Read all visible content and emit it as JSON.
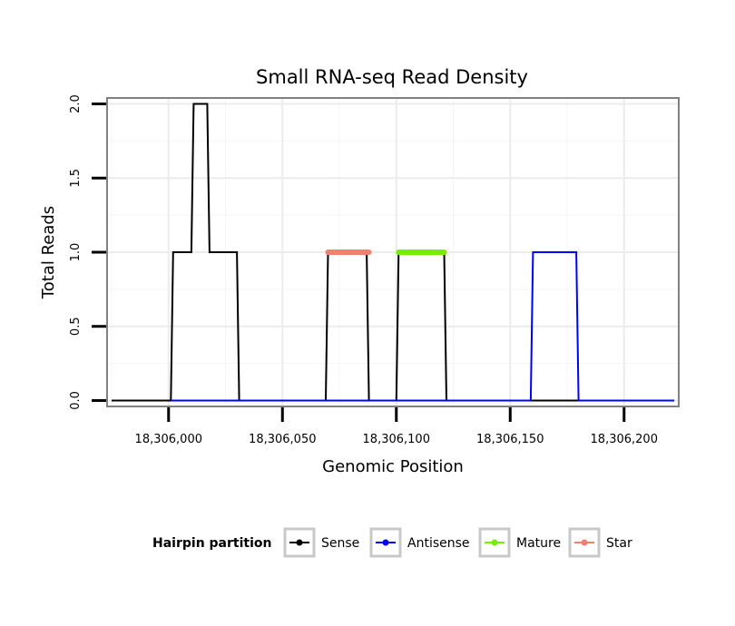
{
  "chart_data": {
    "type": "line",
    "title": "Small RNA-seq Read Density",
    "xlabel": "Genomic Position",
    "ylabel": "Total Reads",
    "xlim": [
      18305973,
      18306224
    ],
    "ylim": [
      -0.04,
      2.04
    ],
    "x_ticks": [
      18306000,
      18306050,
      18306100,
      18306150,
      18306200
    ],
    "x_tick_labels": [
      "18,306,000",
      "18,306,050",
      "18,306,100",
      "18,306,150",
      "18,306,200"
    ],
    "y_ticks": [
      0,
      0.5,
      1,
      1.5,
      2
    ],
    "y_tick_labels": [
      "0.0",
      "0.5",
      "1.0",
      "1.5",
      "2.0"
    ],
    "grid": true,
    "legend_title": "Hairpin partition",
    "legend_position": "bottom",
    "series": [
      {
        "name": "Sense",
        "color": "#000000",
        "width": "thin",
        "points": [
          [
            18305975,
            0
          ],
          [
            18306001,
            0
          ],
          [
            18306002,
            1
          ],
          [
            18306010,
            1
          ],
          [
            18306011,
            2
          ],
          [
            18306017,
            2
          ],
          [
            18306018,
            1
          ],
          [
            18306030,
            1
          ],
          [
            18306031,
            0
          ],
          [
            18306069,
            0
          ],
          [
            18306070,
            1
          ],
          [
            18306087,
            1
          ],
          [
            18306088,
            0
          ],
          [
            18306100,
            0
          ],
          [
            18306101,
            1
          ],
          [
            18306121,
            1
          ],
          [
            18306122,
            0
          ],
          [
            18306222,
            0
          ]
        ]
      },
      {
        "name": "Antisense",
        "color": "#0000ff",
        "width": "thin",
        "points": [
          [
            18306001,
            0
          ],
          [
            18306159,
            0
          ],
          [
            18306160,
            1
          ],
          [
            18306179,
            1
          ],
          [
            18306180,
            0
          ],
          [
            18306222,
            0
          ]
        ]
      },
      {
        "name": "Mature",
        "color": "#76ee00",
        "width": "thick",
        "points": [
          [
            18306101,
            1
          ],
          [
            18306121,
            1
          ]
        ]
      },
      {
        "name": "Star",
        "color": "#f08070",
        "width": "thick",
        "points": [
          [
            18306070,
            1
          ],
          [
            18306088,
            1
          ]
        ]
      }
    ]
  }
}
